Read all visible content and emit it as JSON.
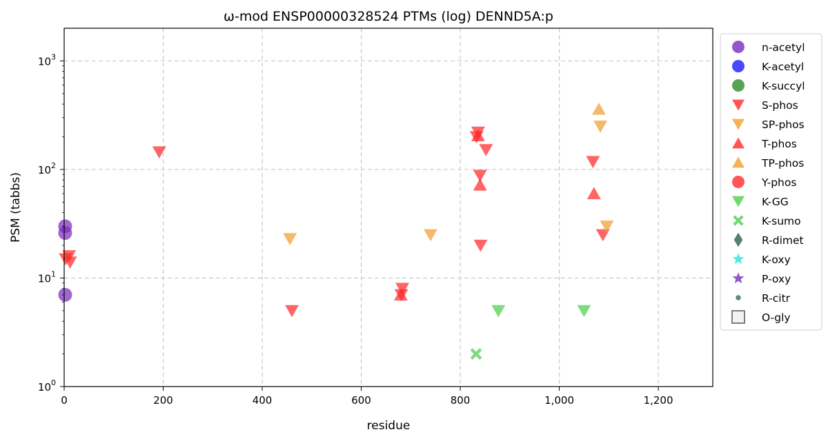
{
  "chart_data": {
    "type": "scatter",
    "title": "ω-mod ENSP00000328524 PTMs (log) DENND5A:p",
    "xlabel": "residue",
    "ylabel": "PSM (tabbs)",
    "xlim": [
      0,
      1310
    ],
    "ylim": [
      1,
      2000
    ],
    "yscale": "log",
    "grid": true,
    "legend_position": "right-outside",
    "x_ticks": [
      0,
      200,
      400,
      600,
      800,
      1000,
      1200
    ],
    "x_tick_labels": [
      "0",
      "200",
      "400",
      "600",
      "800",
      "1,000",
      "1,200"
    ],
    "y_ticks": [
      1,
      10,
      100,
      1000
    ],
    "y_tick_bases": [
      "10",
      "10",
      "10",
      "10"
    ],
    "y_tick_exps": [
      "0",
      "1",
      "2",
      "3"
    ],
    "series": [
      {
        "name": "n-acetyl",
        "marker": "circle",
        "color": "#7b2cbf",
        "points": [
          {
            "x": 2,
            "y": 30
          },
          {
            "x": 2,
            "y": 26
          },
          {
            "x": 2,
            "y": 7
          }
        ]
      },
      {
        "name": "K-acetyl",
        "marker": "circle",
        "color": "#1a1aff",
        "points": []
      },
      {
        "name": "K-succyl",
        "marker": "circle",
        "color": "#2e8b2e",
        "points": []
      },
      {
        "name": "S-phos",
        "marker": "triangle-down",
        "color": "#ff2a2a",
        "points": [
          {
            "x": 3,
            "y": 15
          },
          {
            "x": 10,
            "y": 16
          },
          {
            "x": 12,
            "y": 14
          },
          {
            "x": 192,
            "y": 145
          },
          {
            "x": 460,
            "y": 5
          },
          {
            "x": 681,
            "y": 7
          },
          {
            "x": 683,
            "y": 8
          },
          {
            "x": 833,
            "y": 200
          },
          {
            "x": 836,
            "y": 220
          },
          {
            "x": 840,
            "y": 88
          },
          {
            "x": 841,
            "y": 20
          },
          {
            "x": 852,
            "y": 152
          },
          {
            "x": 1068,
            "y": 118
          },
          {
            "x": 1088,
            "y": 25
          }
        ]
      },
      {
        "name": "SP-phos",
        "marker": "triangle-down",
        "color": "#f0a030",
        "points": [
          {
            "x": 456,
            "y": 23
          },
          {
            "x": 740,
            "y": 25
          },
          {
            "x": 1083,
            "y": 250
          },
          {
            "x": 1096,
            "y": 30
          }
        ]
      },
      {
        "name": "T-phos",
        "marker": "triangle-up",
        "color": "#ff2a2a",
        "points": [
          {
            "x": 680,
            "y": 7
          },
          {
            "x": 836,
            "y": 205
          },
          {
            "x": 840,
            "y": 72
          },
          {
            "x": 1070,
            "y": 60
          }
        ]
      },
      {
        "name": "TP-phos",
        "marker": "triangle-up",
        "color": "#f0a030",
        "points": [
          {
            "x": 1080,
            "y": 360
          }
        ]
      },
      {
        "name": "Y-phos",
        "marker": "circle",
        "color": "#ff2a2a",
        "points": []
      },
      {
        "name": "K-GG",
        "marker": "triangle-down",
        "color": "#4ccf4c",
        "points": [
          {
            "x": 877,
            "y": 5
          },
          {
            "x": 1050,
            "y": 5
          }
        ]
      },
      {
        "name": "K-sumo",
        "marker": "x-cross",
        "color": "#4ccf4c",
        "points": [
          {
            "x": 832,
            "y": 2
          }
        ]
      },
      {
        "name": "R-dimet",
        "marker": "diamond",
        "color": "#2f5f4f",
        "points": []
      },
      {
        "name": "K-oxy",
        "marker": "star",
        "color": "#22e5e5",
        "points": []
      },
      {
        "name": "P-oxy",
        "marker": "star",
        "color": "#7b2cbf",
        "points": []
      },
      {
        "name": "R-citr",
        "marker": "small-circle",
        "color": "#2f6f5a",
        "points": []
      },
      {
        "name": "O-gly",
        "marker": "square-open",
        "color": "#555555",
        "points": []
      }
    ]
  }
}
